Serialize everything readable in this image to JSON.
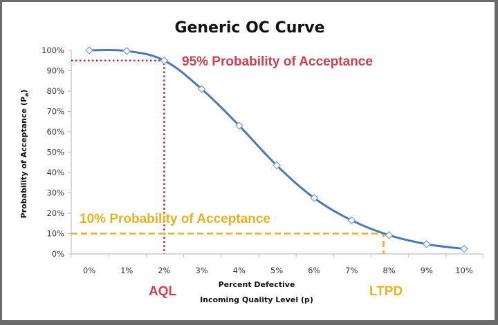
{
  "chart_data": {
    "type": "line",
    "title": "Generic OC Curve",
    "xlabel_line1": "Percent Defective",
    "xlabel_line2": "Incoming Quality Level (p)",
    "ylabel_main": "Probability of Acceptance (P",
    "ylabel_sub": "a",
    "ylabel_end": ")",
    "categories": [
      "0%",
      "1%",
      "2%",
      "3%",
      "4%",
      "5%",
      "6%",
      "7%",
      "8%",
      "9%",
      "10%"
    ],
    "x": [
      0,
      1,
      2,
      3,
      4,
      5,
      6,
      7,
      8,
      9,
      10
    ],
    "series": [
      {
        "name": "OC Curve",
        "color": "#4a78b8",
        "values": [
          100,
          99.7,
          95,
          81,
          63,
          43.5,
          27.5,
          16.5,
          9.2,
          4.8,
          2.5
        ]
      }
    ],
    "ylim": [
      0,
      100
    ],
    "xlim": [
      0,
      10
    ],
    "yticks": [
      "0%",
      "10%",
      "20%",
      "30%",
      "40%",
      "50%",
      "60%",
      "70%",
      "80%",
      "90%",
      "100%"
    ],
    "ytick_values": [
      0,
      10,
      20,
      30,
      40,
      50,
      60,
      70,
      80,
      90,
      100
    ],
    "grid": false,
    "legend": "none",
    "marker": "diamond",
    "annotations": [
      {
        "id": "aql-line",
        "label": "95% Probability of Acceptance",
        "color": "#c0283c",
        "y": 95,
        "x": 2,
        "style": "dotted"
      },
      {
        "id": "ltpd-line",
        "label": "10% Probability of Acceptance",
        "color": "#e6b422",
        "y": 10,
        "x": 7.85,
        "style": "dashed"
      }
    ],
    "aql_label": "AQL",
    "ltpd_label": "LTPD"
  }
}
